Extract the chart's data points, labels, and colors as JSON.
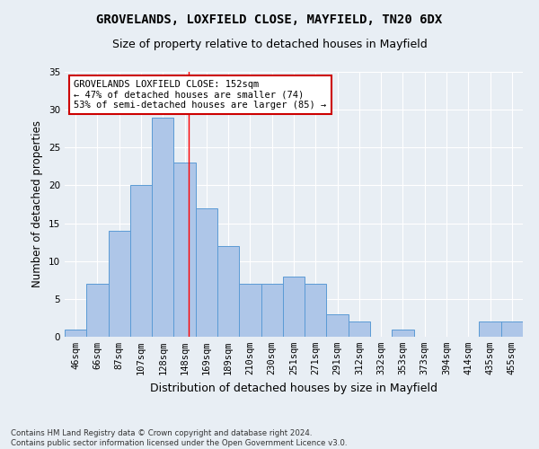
{
  "title1": "GROVELANDS, LOXFIELD CLOSE, MAYFIELD, TN20 6DX",
  "title2": "Size of property relative to detached houses in Mayfield",
  "xlabel": "Distribution of detached houses by size in Mayfield",
  "ylabel": "Number of detached properties",
  "footnote": "Contains HM Land Registry data © Crown copyright and database right 2024.\nContains public sector information licensed under the Open Government Licence v3.0.",
  "categories": [
    "46sqm",
    "66sqm",
    "87sqm",
    "107sqm",
    "128sqm",
    "148sqm",
    "169sqm",
    "189sqm",
    "210sqm",
    "230sqm",
    "251sqm",
    "271sqm",
    "291sqm",
    "312sqm",
    "332sqm",
    "353sqm",
    "373sqm",
    "394sqm",
    "414sqm",
    "435sqm",
    "455sqm"
  ],
  "values": [
    1,
    7,
    14,
    20,
    29,
    23,
    17,
    12,
    7,
    7,
    8,
    7,
    3,
    2,
    0,
    1,
    0,
    0,
    0,
    2,
    2
  ],
  "bar_color": "#aec6e8",
  "bar_edge_color": "#5b9bd5",
  "red_line_x": 5.19,
  "annotation_text": "GROVELANDS LOXFIELD CLOSE: 152sqm\n← 47% of detached houses are smaller (74)\n53% of semi-detached houses are larger (85) →",
  "annotation_box_color": "#ffffff",
  "annotation_box_edge": "#cc0000",
  "ylim": [
    0,
    35
  ],
  "yticks": [
    0,
    5,
    10,
    15,
    20,
    25,
    30,
    35
  ],
  "background_color": "#e8eef4",
  "grid_color": "#ffffff",
  "title1_fontsize": 10,
  "title2_fontsize": 9,
  "xlabel_fontsize": 9,
  "ylabel_fontsize": 8.5,
  "tick_fontsize": 7.5,
  "annotation_fontsize": 7.5
}
